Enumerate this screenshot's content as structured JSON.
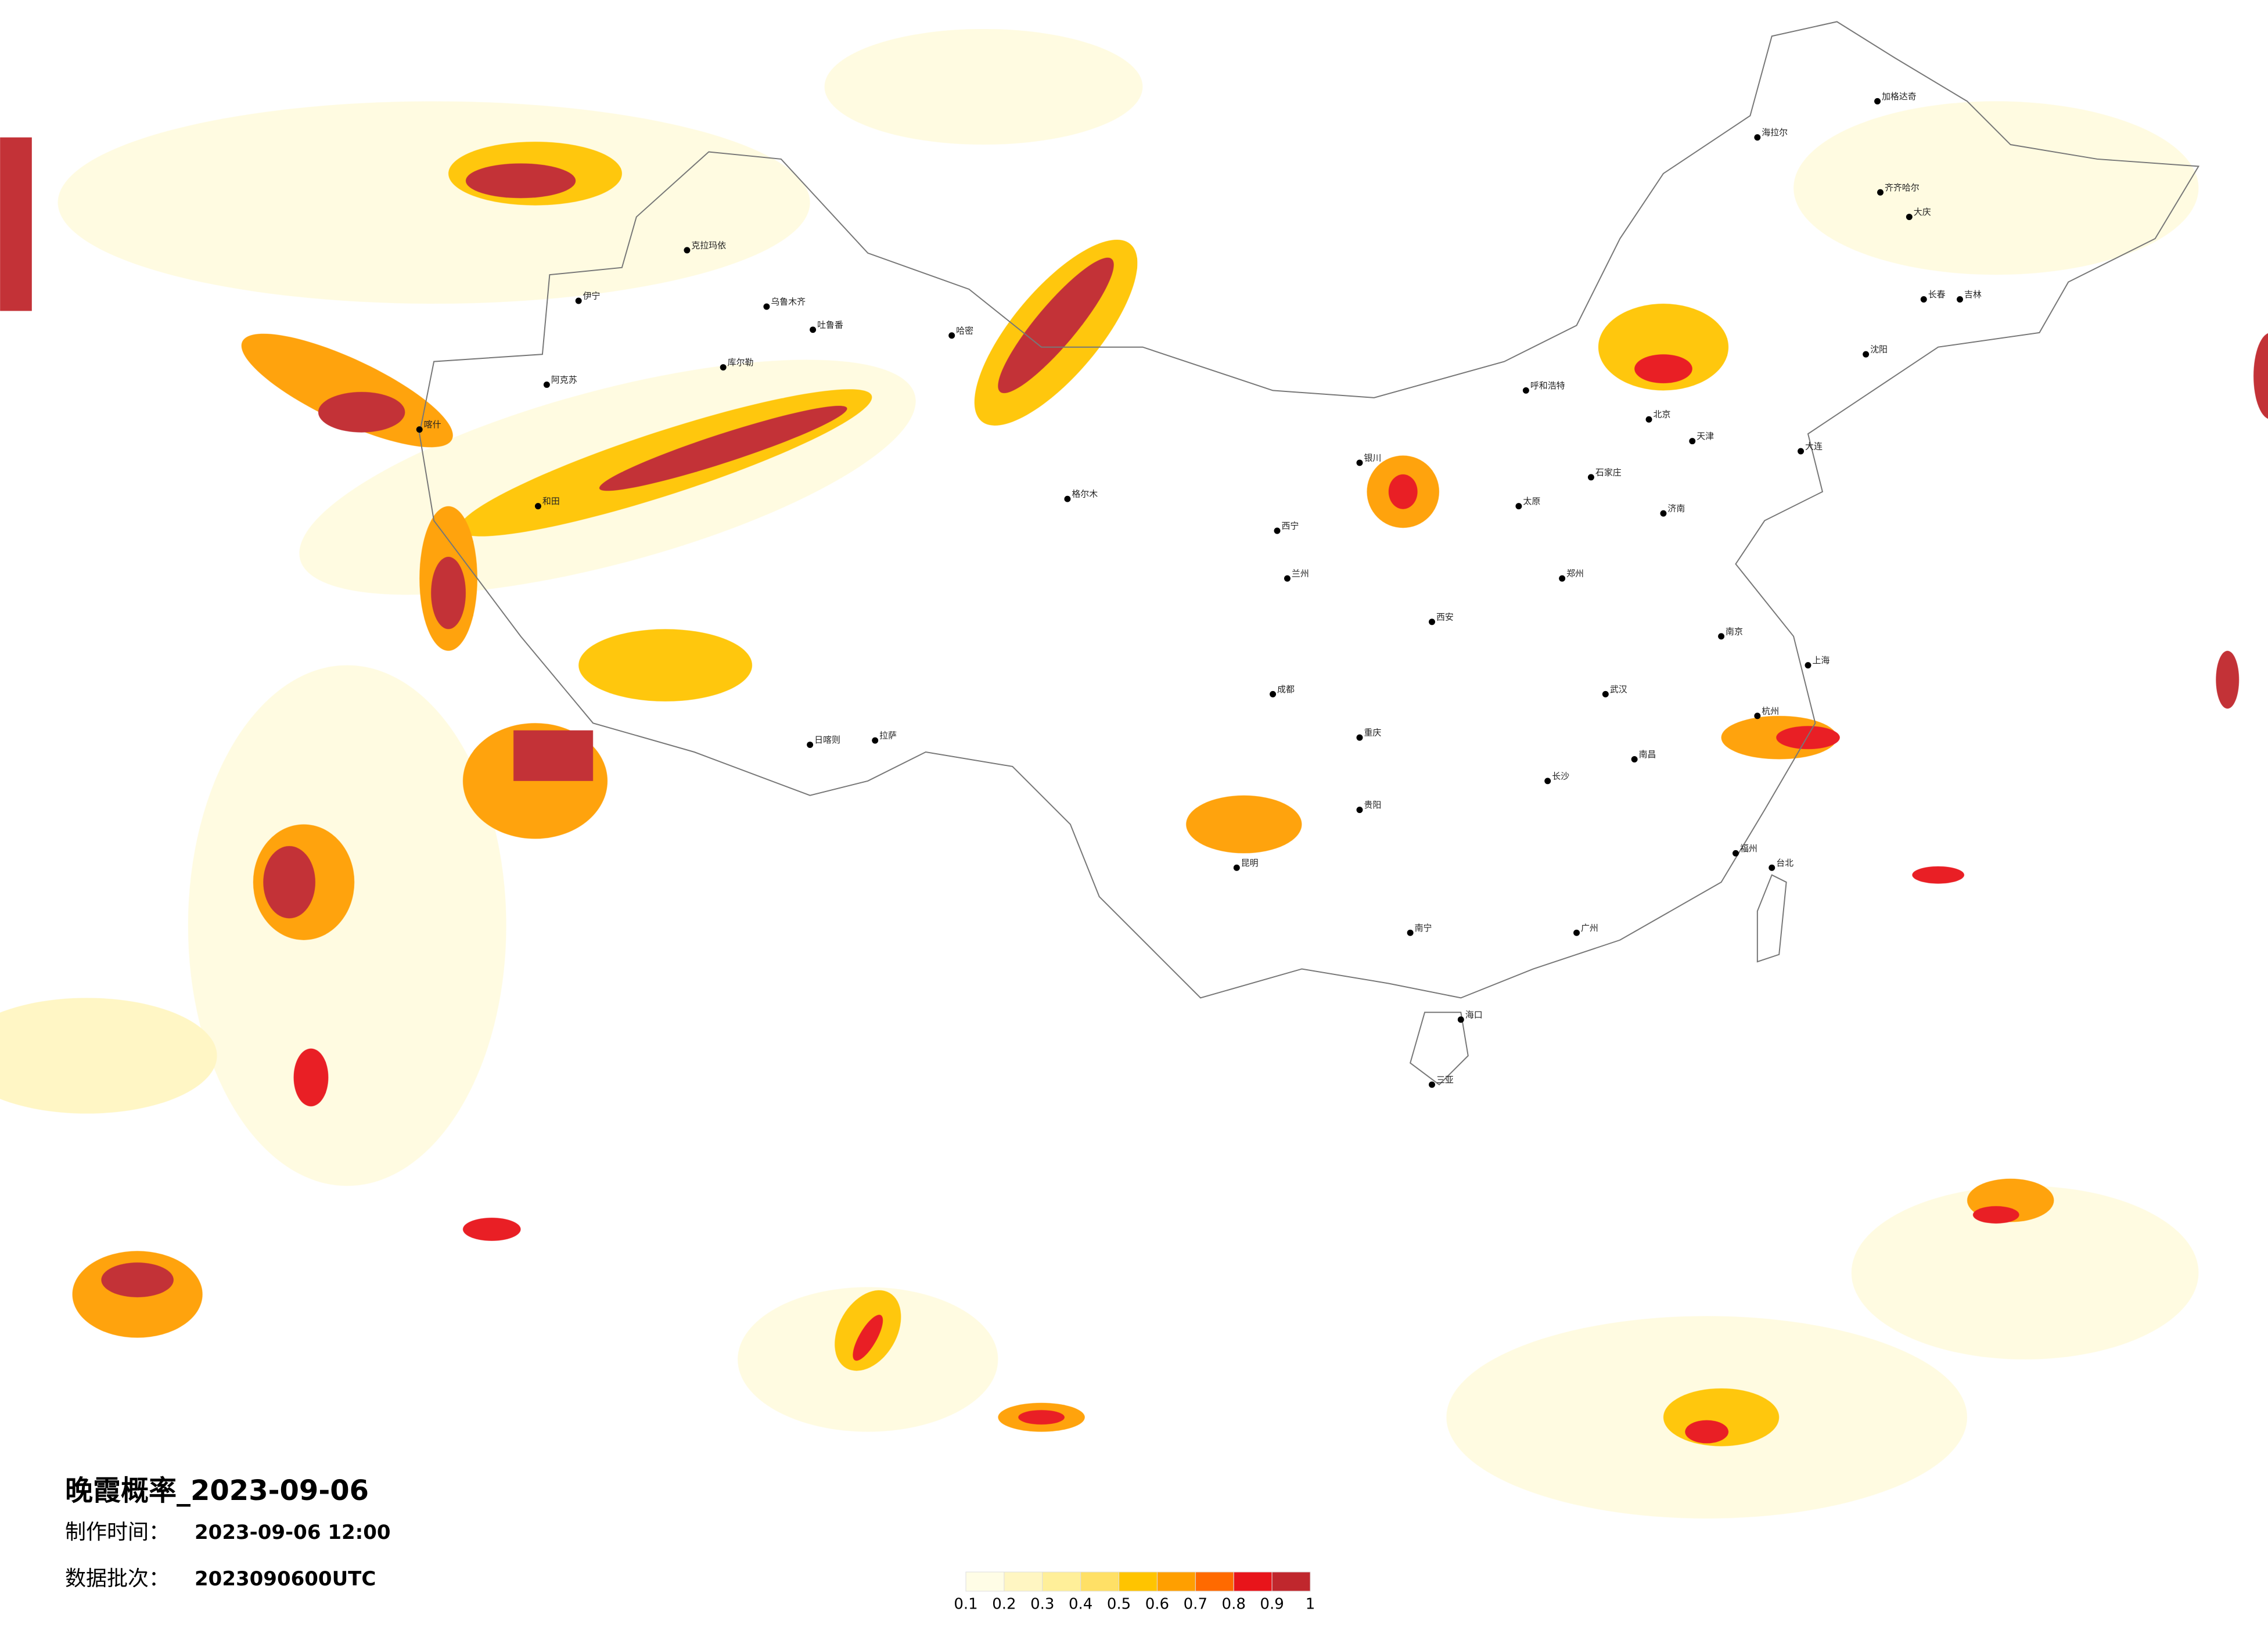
{
  "title": "晚霞概率_2023-09-06",
  "make_time": {
    "label": "制作时间：",
    "value": "2023-09-06 12:00"
  },
  "batch": {
    "label": "数据批次：",
    "value": "2023090600UTC"
  },
  "colorbar": {
    "ticks": [
      0.1,
      0.2,
      0.3,
      0.4,
      0.5,
      0.6,
      0.7,
      0.8,
      0.9,
      1
    ],
    "colors": [
      "#fffde6",
      "#fff6c2",
      "#ffef99",
      "#ffe066",
      "#ffc400",
      "#ff9f00",
      "#ff6a00",
      "#e8141a",
      "#c0272d"
    ]
  },
  "cities": [
    "克拉玛依",
    "乌鲁木齐",
    "吐鲁番",
    "哈密",
    "库尔勒",
    "伊宁",
    "阿克苏",
    "喀什",
    "和田",
    "格尔木",
    "拉萨",
    "日喀则",
    "加格达奇",
    "海拉尔",
    "齐齐哈尔",
    "大庆",
    "长春",
    "吉林",
    "沈阳",
    "大连",
    "北京",
    "天津",
    "石家庄",
    "太原",
    "济南",
    "郑州",
    "西安",
    "武汉",
    "南京",
    "上海",
    "杭州",
    "长沙",
    "南昌",
    "福州",
    "广州",
    "南宁",
    "昆明",
    "成都",
    "重庆",
    "贵阳",
    "海口",
    "三亚",
    "台北",
    "兰州",
    "银川",
    "呼和浩特",
    "西宁"
  ]
}
